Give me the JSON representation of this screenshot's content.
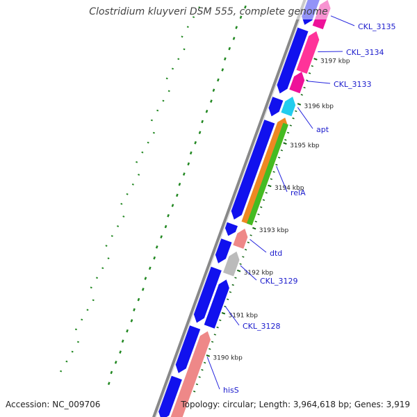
{
  "title": "Clostridium kluyveri DSM 555, complete genome",
  "footer": {
    "accession": "Accession: NC_009706",
    "topology": "Topology: circular; Length: 3,964,618 bp; Genes: 3,919"
  },
  "colors": {
    "backbone": "#888888",
    "forward_gene": "#1111ee",
    "label_text": "#1a1acc",
    "leader_line": "#2222dd",
    "gc_skew": "#228822"
  },
  "ticks": [
    {
      "label": "3197 kbp",
      "kbp": 3197
    },
    {
      "label": "3196 kbp",
      "kbp": 3196
    },
    {
      "label": "3195 kbp",
      "kbp": 3195
    },
    {
      "label": "3194 kbp",
      "kbp": 3194
    },
    {
      "label": "3193 kbp",
      "kbp": 3193
    },
    {
      "label": "3192 kbp",
      "kbp": 3192
    },
    {
      "label": "3191 kbp",
      "kbp": 3191
    },
    {
      "label": "3190 kbp",
      "kbp": 3190
    }
  ],
  "genes": [
    {
      "name": "CKL_3135",
      "strand": "reverse",
      "color": "#ee1199"
    },
    {
      "name": "CKL_3134",
      "strand": "reverse",
      "color": "#ff3399"
    },
    {
      "name": "CKL_3133",
      "strand": "reverse",
      "color": "#ee1199"
    },
    {
      "name": "apt",
      "strand": "reverse",
      "color": "#22ccee"
    },
    {
      "name": "relA",
      "strand": "reverse",
      "color": "#ee8822"
    },
    {
      "name": "dtd",
      "strand": "reverse",
      "color": "#ee8888"
    },
    {
      "name": "CKL_3129",
      "strand": "reverse",
      "color": "#bbbbbb"
    },
    {
      "name": "CKL_3128",
      "strand": "reverse",
      "color": "#1111ee"
    },
    {
      "name": "hisS",
      "strand": "reverse",
      "color": "#ee8888"
    }
  ]
}
